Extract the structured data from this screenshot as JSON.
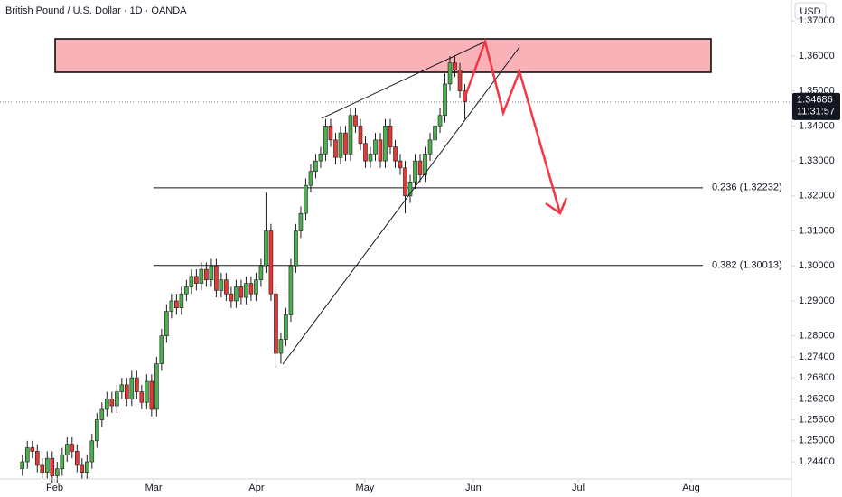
{
  "chart_data": {
    "type": "candlestick",
    "title": "British Pound / U.S. Dollar · 1D · OANDA",
    "currency": "USD",
    "up_color": "#4caf50",
    "down_color": "#e53935",
    "ylim": [
      1.2391,
      1.376
    ],
    "yticks": [
      {
        "value": 1.37,
        "label": "1.37000"
      },
      {
        "value": 1.36,
        "label": "1.36000"
      },
      {
        "value": 1.35,
        "label": "1.35000"
      },
      {
        "value": 1.34,
        "label": "1.34000"
      },
      {
        "value": 1.33,
        "label": "1.33000"
      },
      {
        "value": 1.32,
        "label": "1.32000"
      },
      {
        "value": 1.31,
        "label": "1.31000"
      },
      {
        "value": 1.3,
        "label": "1.30000"
      },
      {
        "value": 1.29,
        "label": "1.29000"
      },
      {
        "value": 1.28,
        "label": "1.28000"
      },
      {
        "value": 1.274,
        "label": "1.27400"
      },
      {
        "value": 1.268,
        "label": "1.26800"
      },
      {
        "value": 1.262,
        "label": "1.26200"
      },
      {
        "value": 1.256,
        "label": "1.25600"
      },
      {
        "value": 1.25,
        "label": "1.25000"
      },
      {
        "value": 1.244,
        "label": "1.24400"
      }
    ],
    "xlim": [
      -4.5,
      154.5
    ],
    "xticks": [
      {
        "value": 6.5,
        "label": "Feb"
      },
      {
        "value": 26.4,
        "label": "Mar"
      },
      {
        "value": 47.1,
        "label": "Apr"
      },
      {
        "value": 68.9,
        "label": "May"
      },
      {
        "value": 90.7,
        "label": "Jun"
      },
      {
        "value": 111.8,
        "label": "Jul"
      },
      {
        "value": 134.5,
        "label": "Aug"
      }
    ],
    "last_price": 1.34686,
    "countdown": "11:31:57",
    "fib_levels": [
      {
        "value": 1.32232,
        "label": "0.236 (1.32232)"
      },
      {
        "value": 1.30013,
        "label": "0.382 (1.30013)"
      }
    ],
    "candles": [
      [
        1.242,
        1.246,
        1.24,
        1.244
      ],
      [
        1.244,
        1.25,
        1.242,
        1.248
      ],
      [
        1.248,
        1.25,
        1.245,
        1.247
      ],
      [
        1.247,
        1.249,
        1.241,
        1.243
      ],
      [
        1.243,
        1.245,
        1.239,
        1.241
      ],
      [
        1.241,
        1.247,
        1.239,
        1.245
      ],
      [
        1.245,
        1.247,
        1.238,
        1.24
      ],
      [
        1.24,
        1.244,
        1.238,
        1.242
      ],
      [
        1.242,
        1.248,
        1.24,
        1.246
      ],
      [
        1.246,
        1.251,
        1.244,
        1.249
      ],
      [
        1.249,
        1.251,
        1.245,
        1.247
      ],
      [
        1.247,
        1.249,
        1.241,
        1.243
      ],
      [
        1.243,
        1.245,
        1.239,
        1.241
      ],
      [
        1.241,
        1.246,
        1.239,
        1.244
      ],
      [
        1.244,
        1.252,
        1.242,
        1.25
      ],
      [
        1.25,
        1.258,
        1.248,
        1.256
      ],
      [
        1.256,
        1.261,
        1.254,
        1.259
      ],
      [
        1.259,
        1.264,
        1.257,
        1.262
      ],
      [
        1.262,
        1.264,
        1.258,
        1.26
      ],
      [
        1.26,
        1.266,
        1.258,
        1.264
      ],
      [
        1.264,
        1.268,
        1.262,
        1.266
      ],
      [
        1.266,
        1.268,
        1.26,
        1.262
      ],
      [
        1.262,
        1.27,
        1.26,
        1.268
      ],
      [
        1.268,
        1.27,
        1.262,
        1.264
      ],
      [
        1.264,
        1.266,
        1.259,
        1.261
      ],
      [
        1.261,
        1.269,
        1.259,
        1.267
      ],
      [
        1.267,
        1.269,
        1.257,
        1.259
      ],
      [
        1.259,
        1.274,
        1.257,
        1.272
      ],
      [
        1.272,
        1.282,
        1.27,
        1.28
      ],
      [
        1.28,
        1.289,
        1.278,
        1.287
      ],
      [
        1.287,
        1.292,
        1.285,
        1.29
      ],
      [
        1.29,
        1.292,
        1.286,
        1.288
      ],
      [
        1.288,
        1.294,
        1.286,
        1.292
      ],
      [
        1.292,
        1.296,
        1.29,
        1.294
      ],
      [
        1.294,
        1.299,
        1.292,
        1.297
      ],
      [
        1.297,
        1.299,
        1.293,
        1.295
      ],
      [
        1.295,
        1.301,
        1.293,
        1.299
      ],
      [
        1.299,
        1.301,
        1.294,
        1.296
      ],
      [
        1.296,
        1.302,
        1.294,
        1.3
      ],
      [
        1.3,
        1.302,
        1.291,
        1.293
      ],
      [
        1.293,
        1.298,
        1.291,
        1.296
      ],
      [
        1.296,
        1.298,
        1.29,
        1.292
      ],
      [
        1.292,
        1.294,
        1.288,
        1.29
      ],
      [
        1.29,
        1.296,
        1.288,
        1.294
      ],
      [
        1.294,
        1.296,
        1.289,
        1.291
      ],
      [
        1.291,
        1.297,
        1.289,
        1.295
      ],
      [
        1.295,
        1.297,
        1.29,
        1.292
      ],
      [
        1.292,
        1.298,
        1.29,
        1.296
      ],
      [
        1.296,
        1.302,
        1.294,
        1.3
      ],
      [
        1.3,
        1.321,
        1.298,
        1.31
      ],
      [
        1.31,
        1.312,
        1.29,
        1.292
      ],
      [
        1.292,
        1.294,
        1.271,
        1.275
      ],
      [
        1.275,
        1.281,
        1.272,
        1.279
      ],
      [
        1.279,
        1.288,
        1.277,
        1.286
      ],
      [
        1.286,
        1.302,
        1.284,
        1.3
      ],
      [
        1.3,
        1.312,
        1.298,
        1.31
      ],
      [
        1.31,
        1.317,
        1.308,
        1.315
      ],
      [
        1.315,
        1.325,
        1.313,
        1.323
      ],
      [
        1.323,
        1.329,
        1.321,
        1.327
      ],
      [
        1.327,
        1.332,
        1.325,
        1.33
      ],
      [
        1.33,
        1.334,
        1.328,
        1.332
      ],
      [
        1.332,
        1.342,
        1.33,
        1.34
      ],
      [
        1.34,
        1.342,
        1.334,
        1.336
      ],
      [
        1.336,
        1.338,
        1.329,
        1.331
      ],
      [
        1.331,
        1.34,
        1.329,
        1.338
      ],
      [
        1.338,
        1.34,
        1.33,
        1.332
      ],
      [
        1.332,
        1.345,
        1.33,
        1.343
      ],
      [
        1.343,
        1.345,
        1.338,
        1.34
      ],
      [
        1.34,
        1.342,
        1.333,
        1.335
      ],
      [
        1.335,
        1.337,
        1.328,
        1.33
      ],
      [
        1.33,
        1.334,
        1.328,
        1.332
      ],
      [
        1.332,
        1.338,
        1.33,
        1.336
      ],
      [
        1.336,
        1.338,
        1.328,
        1.33
      ],
      [
        1.33,
        1.342,
        1.328,
        1.34
      ],
      [
        1.34,
        1.342,
        1.332,
        1.334
      ],
      [
        1.334,
        1.336,
        1.328,
        1.33
      ],
      [
        1.33,
        1.332,
        1.326,
        1.328
      ],
      [
        1.328,
        1.33,
        1.315,
        1.32
      ],
      [
        1.32,
        1.326,
        1.318,
        1.324
      ],
      [
        1.324,
        1.332,
        1.322,
        1.33
      ],
      [
        1.33,
        1.332,
        1.324,
        1.326
      ],
      [
        1.326,
        1.334,
        1.324,
        1.332
      ],
      [
        1.332,
        1.338,
        1.33,
        1.336
      ],
      [
        1.336,
        1.342,
        1.334,
        1.34
      ],
      [
        1.34,
        1.345,
        1.338,
        1.343
      ],
      [
        1.343,
        1.355,
        1.341,
        1.352
      ],
      [
        1.352,
        1.36,
        1.35,
        1.358
      ],
      [
        1.358,
        1.36,
        1.354,
        1.356
      ],
      [
        1.356,
        1.358,
        1.348,
        1.35
      ],
      [
        1.35,
        1.352,
        1.342,
        1.3469
      ]
    ]
  }
}
